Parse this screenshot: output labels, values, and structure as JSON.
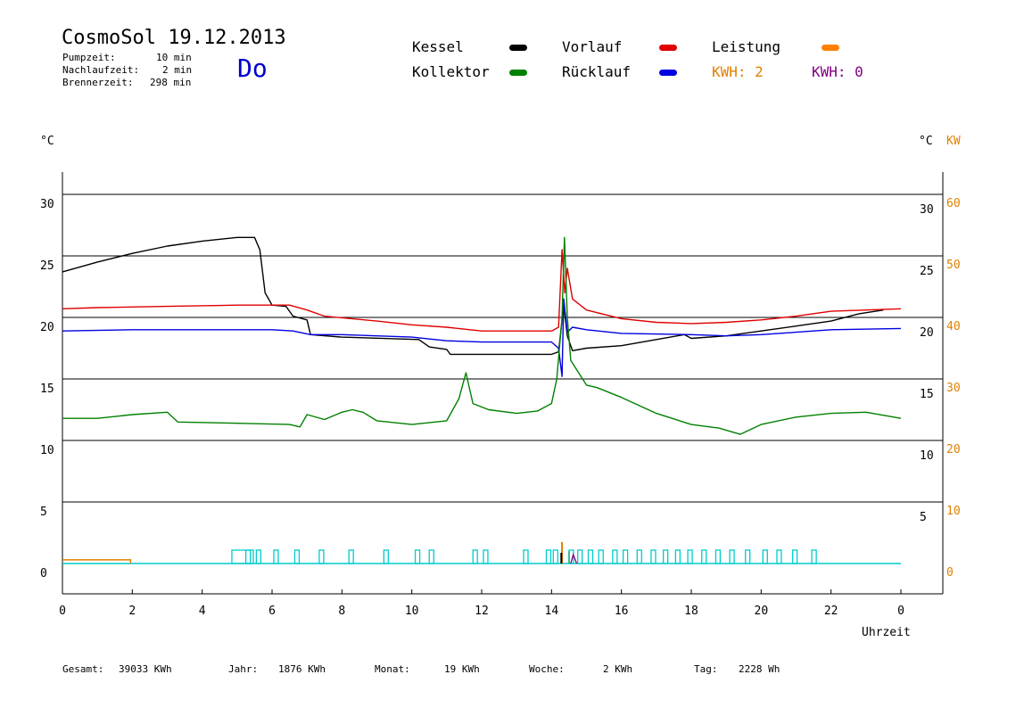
{
  "header": {
    "title": "CosmoSol 19.12.2013",
    "day": "Do",
    "params": [
      {
        "label": "Pumpzeit:",
        "value": "10 min"
      },
      {
        "label": "Nachlaufzeit:",
        "value": "2 min"
      },
      {
        "label": "Brennerzeit:",
        "value": "298 min"
      }
    ]
  },
  "legend": {
    "kessel": {
      "label": "Kessel",
      "color": "#000000"
    },
    "vorlauf": {
      "label": "Vorlauf",
      "color": "#e00000"
    },
    "leistung": {
      "label": "Leistung",
      "color": "#ff8000"
    },
    "kollektor": {
      "label": "Kollektor",
      "color": "#008000"
    },
    "ruecklauf": {
      "label": "Rücklauf",
      "color": "#0000e0"
    },
    "kwh_orange": "KWH: 2",
    "kwh_purple": "KWH: 0",
    "kwh_orange_color": "#e08000",
    "kwh_purple_color": "#800080"
  },
  "axes": {
    "left_unit": "°C",
    "right_unit_c": "°C",
    "right_unit_kw": "KW",
    "x_label": "Uhrzeit",
    "left_ticks": [
      "0",
      "5",
      "10",
      "15",
      "20",
      "25",
      "30"
    ],
    "right_ticks_c": [
      "5",
      "10",
      "15",
      "20",
      "25",
      "30"
    ],
    "right_ticks_kw": [
      "0",
      "10",
      "20",
      "30",
      "40",
      "50",
      "60"
    ],
    "x_ticks": [
      "0",
      "2",
      "4",
      "6",
      "8",
      "10",
      "12",
      "14",
      "16",
      "18",
      "20",
      "22",
      "0"
    ]
  },
  "footer": [
    {
      "label": "Gesamt:",
      "value": "39033 KWh"
    },
    {
      "label": "Jahr:",
      "value": "1876 KWh"
    },
    {
      "label": "Monat:",
      "value": "19 KWh"
    },
    {
      "label": "Woche:",
      "value": "2 KWh"
    },
    {
      "label": "Tag:",
      "value": "2228 Wh"
    }
  ],
  "chart_data": {
    "type": "line",
    "xlabel": "Uhrzeit",
    "ylabel": "°C",
    "xlim": [
      0,
      24
    ],
    "ylim": [
      -2.5,
      32
    ],
    "y2_label": "KW",
    "y2lim": [
      -5,
      64
    ],
    "grid": true,
    "series": [
      {
        "name": "Kessel",
        "color": "#000000",
        "points": [
          [
            0,
            23.7
          ],
          [
            1,
            24.5
          ],
          [
            2,
            25.2
          ],
          [
            3,
            25.8
          ],
          [
            4,
            26.2
          ],
          [
            5,
            26.5
          ],
          [
            5.5,
            26.5
          ],
          [
            5.65,
            25.5
          ],
          [
            5.8,
            22
          ],
          [
            6,
            21
          ],
          [
            6.4,
            20.9
          ],
          [
            6.6,
            20.1
          ],
          [
            7,
            19.8
          ],
          [
            7.1,
            18.6
          ],
          [
            8,
            18.4
          ],
          [
            10.2,
            18.2
          ],
          [
            10.5,
            17.6
          ],
          [
            11,
            17.4
          ],
          [
            11.1,
            17
          ],
          [
            14,
            17
          ],
          [
            14.2,
            17.2
          ],
          [
            14.35,
            21
          ],
          [
            14.45,
            18.5
          ],
          [
            14.6,
            17.3
          ],
          [
            15,
            17.5
          ],
          [
            16,
            17.7
          ],
          [
            17,
            18.2
          ],
          [
            17.8,
            18.6
          ],
          [
            18,
            18.3
          ],
          [
            19,
            18.5
          ],
          [
            20,
            18.9
          ],
          [
            21,
            19.3
          ],
          [
            22,
            19.7
          ],
          [
            22.8,
            20.3
          ],
          [
            23.5,
            20.6
          ]
        ]
      },
      {
        "name": "Vorlauf",
        "color": "#e00000",
        "points": [
          [
            0,
            20.7
          ],
          [
            1,
            20.8
          ],
          [
            3,
            20.9
          ],
          [
            5,
            21
          ],
          [
            6.5,
            21
          ],
          [
            7,
            20.6
          ],
          [
            7.5,
            20.1
          ],
          [
            9,
            19.7
          ],
          [
            10,
            19.4
          ],
          [
            11,
            19.2
          ],
          [
            12,
            18.9
          ],
          [
            14,
            18.9
          ],
          [
            14.2,
            19.2
          ],
          [
            14.3,
            25.5
          ],
          [
            14.38,
            22
          ],
          [
            14.45,
            24
          ],
          [
            14.6,
            21.5
          ],
          [
            15,
            20.6
          ],
          [
            16,
            19.9
          ],
          [
            17,
            19.6
          ],
          [
            18,
            19.5
          ],
          [
            19,
            19.6
          ],
          [
            20,
            19.8
          ],
          [
            21,
            20.1
          ],
          [
            22,
            20.5
          ],
          [
            24,
            20.7
          ]
        ]
      },
      {
        "name": "Rücklauf",
        "color": "#0000e0",
        "points": [
          [
            0,
            18.9
          ],
          [
            2,
            19
          ],
          [
            4,
            19
          ],
          [
            6,
            19
          ],
          [
            6.6,
            18.9
          ],
          [
            7.1,
            18.6
          ],
          [
            8,
            18.6
          ],
          [
            10,
            18.4
          ],
          [
            11,
            18.1
          ],
          [
            12,
            18
          ],
          [
            14,
            18
          ],
          [
            14.2,
            17.5
          ],
          [
            14.3,
            15.2
          ],
          [
            14.35,
            21.5
          ],
          [
            14.45,
            18.8
          ],
          [
            14.6,
            19.2
          ],
          [
            15,
            19
          ],
          [
            16,
            18.7
          ],
          [
            18,
            18.6
          ],
          [
            19,
            18.5
          ],
          [
            20,
            18.6
          ],
          [
            21,
            18.8
          ],
          [
            22,
            19
          ],
          [
            24,
            19.1
          ]
        ]
      },
      {
        "name": "Kollektor",
        "color": "#008000",
        "points": [
          [
            0,
            11.8
          ],
          [
            1,
            11.8
          ],
          [
            2,
            12.1
          ],
          [
            3,
            12.3
          ],
          [
            3.3,
            11.5
          ],
          [
            5,
            11.4
          ],
          [
            6.5,
            11.3
          ],
          [
            6.8,
            11.1
          ],
          [
            7,
            12.1
          ],
          [
            7.5,
            11.7
          ],
          [
            8,
            12.3
          ],
          [
            8.3,
            12.5
          ],
          [
            8.6,
            12.3
          ],
          [
            9,
            11.6
          ],
          [
            10,
            11.3
          ],
          [
            11,
            11.6
          ],
          [
            11.35,
            13.4
          ],
          [
            11.55,
            15.5
          ],
          [
            11.75,
            13
          ],
          [
            12.2,
            12.5
          ],
          [
            13,
            12.2
          ],
          [
            13.6,
            12.4
          ],
          [
            14,
            13
          ],
          [
            14.15,
            15
          ],
          [
            14.3,
            20
          ],
          [
            14.37,
            26.5
          ],
          [
            14.45,
            20
          ],
          [
            14.55,
            16.5
          ],
          [
            15,
            14.5
          ],
          [
            15.3,
            14.3
          ],
          [
            16,
            13.5
          ],
          [
            17,
            12.2
          ],
          [
            18,
            11.3
          ],
          [
            18.8,
            11
          ],
          [
            19.4,
            10.5
          ],
          [
            20,
            11.3
          ],
          [
            21,
            11.9
          ],
          [
            22,
            12.2
          ],
          [
            23,
            12.3
          ],
          [
            24,
            11.8
          ]
        ]
      },
      {
        "name": "Leistung",
        "color": "#e08000",
        "axis": "y2",
        "points": [
          [
            0,
            0.6
          ],
          [
            1.95,
            0.6
          ],
          [
            14.3,
            3.5
          ],
          [
            14.5,
            2
          ]
        ]
      }
    ]
  }
}
